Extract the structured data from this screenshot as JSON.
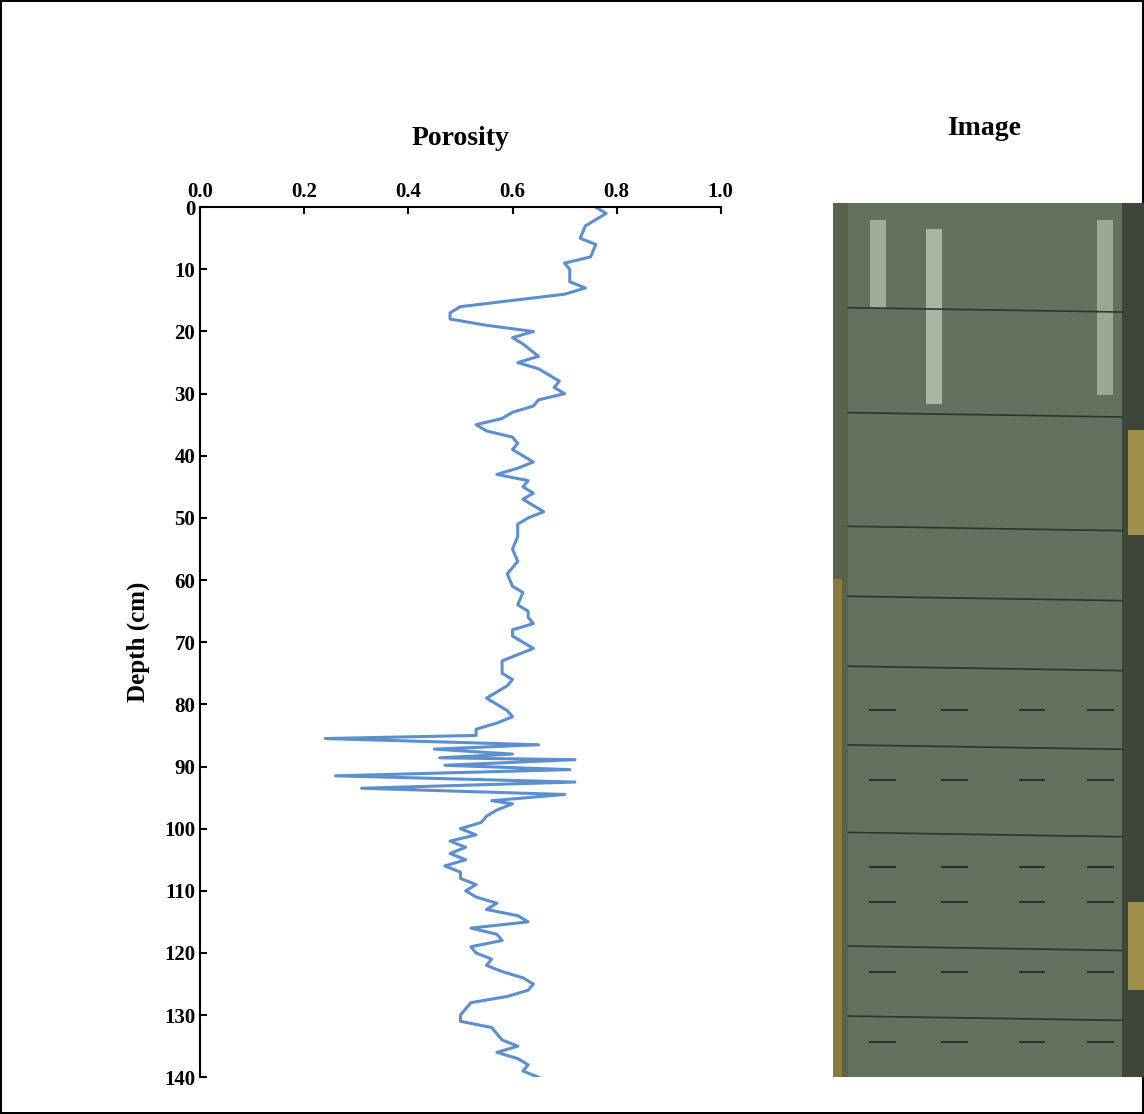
{
  "chart_data": {
    "type": "line",
    "title": "Porosity",
    "y_label": "Depth (cm)",
    "color": "#5b8fd0",
    "x": [
      0.76,
      0.78,
      0.74,
      0.73,
      0.76,
      0.75,
      0.7,
      0.71,
      0.71,
      0.74,
      0.7,
      0.5,
      0.48,
      0.48,
      0.55,
      0.64,
      0.6,
      0.62,
      0.65,
      0.61,
      0.65,
      0.67,
      0.69,
      0.68,
      0.7,
      0.65,
      0.64,
      0.6,
      0.58,
      0.53,
      0.55,
      0.6,
      0.61,
      0.6,
      0.64,
      0.61,
      0.57,
      0.63,
      0.62,
      0.64,
      0.62,
      0.64,
      0.66,
      0.63,
      0.61,
      0.61,
      0.6,
      0.61,
      0.59,
      0.6,
      0.62,
      0.61,
      0.63,
      0.63,
      0.64,
      0.6,
      0.6,
      0.62,
      0.64,
      0.61,
      0.58,
      0.58,
      0.6,
      0.59,
      0.55,
      0.57,
      0.59,
      0.6,
      0.57,
      0.53,
      0.53,
      0.24,
      0.65,
      0.45,
      0.6,
      0.46,
      0.72,
      0.47,
      0.71,
      0.26,
      0.72,
      0.31,
      0.7,
      0.56,
      0.6,
      0.57,
      0.55,
      0.54,
      0.5,
      0.53,
      0.48,
      0.51,
      0.48,
      0.51,
      0.47,
      0.5,
      0.5,
      0.53,
      0.51,
      0.53,
      0.57,
      0.55,
      0.61,
      0.63,
      0.52,
      0.57,
      0.58,
      0.52,
      0.53,
      0.56,
      0.55,
      0.58,
      0.62,
      0.64,
      0.63,
      0.59,
      0.52,
      0.51,
      0.5,
      0.5,
      0.56,
      0.57,
      0.58,
      0.61,
      0.57,
      0.61,
      0.63,
      0.62,
      0.65
    ],
    "y": [
      0,
      1,
      3,
      5,
      6,
      8,
      9,
      10,
      12,
      13,
      14,
      16,
      17,
      18,
      19,
      20,
      21,
      22,
      24,
      25,
      26,
      27,
      28,
      29,
      30,
      31,
      32,
      33,
      34,
      35,
      36,
      37,
      38,
      39,
      41,
      42,
      43,
      44,
      45,
      46,
      47,
      48,
      49,
      50,
      51,
      53,
      55,
      57,
      59,
      61,
      62,
      64,
      65,
      66,
      67,
      68,
      69,
      70,
      71,
      72,
      73,
      75,
      76,
      77,
      79,
      80,
      81,
      82,
      83,
      84,
      85,
      85.5,
      86.5,
      87.2,
      88,
      88.6,
      88.9,
      89.8,
      90.5,
      91.5,
      92.5,
      93.5,
      94.5,
      95.5,
      96,
      97,
      98,
      99,
      100,
      101,
      102,
      103,
      104,
      105,
      106,
      107,
      108,
      109,
      110,
      111,
      112,
      113,
      114,
      115,
      116,
      117,
      118,
      119,
      120,
      121,
      122,
      123,
      124,
      125,
      126,
      127,
      128,
      129,
      130,
      131,
      132,
      133,
      134,
      135,
      136,
      137,
      138,
      139,
      140
    ],
    "xlim": [
      0,
      1
    ],
    "xticks": [
      {
        "value": 0,
        "label": "0.0"
      },
      {
        "value": 0.2,
        "label": "0.2"
      },
      {
        "value": 0.4,
        "label": "0.4"
      },
      {
        "value": 0.6,
        "label": "0.6"
      },
      {
        "value": 0.8,
        "label": "0.8"
      },
      {
        "value": 1,
        "label": "1.0"
      }
    ],
    "ylim": [
      140,
      0
    ],
    "yticks": [
      0,
      10,
      20,
      30,
      40,
      50,
      60,
      70,
      80,
      90,
      100,
      110,
      120,
      130,
      140
    ]
  },
  "image_panel": {
    "title": "Image"
  }
}
